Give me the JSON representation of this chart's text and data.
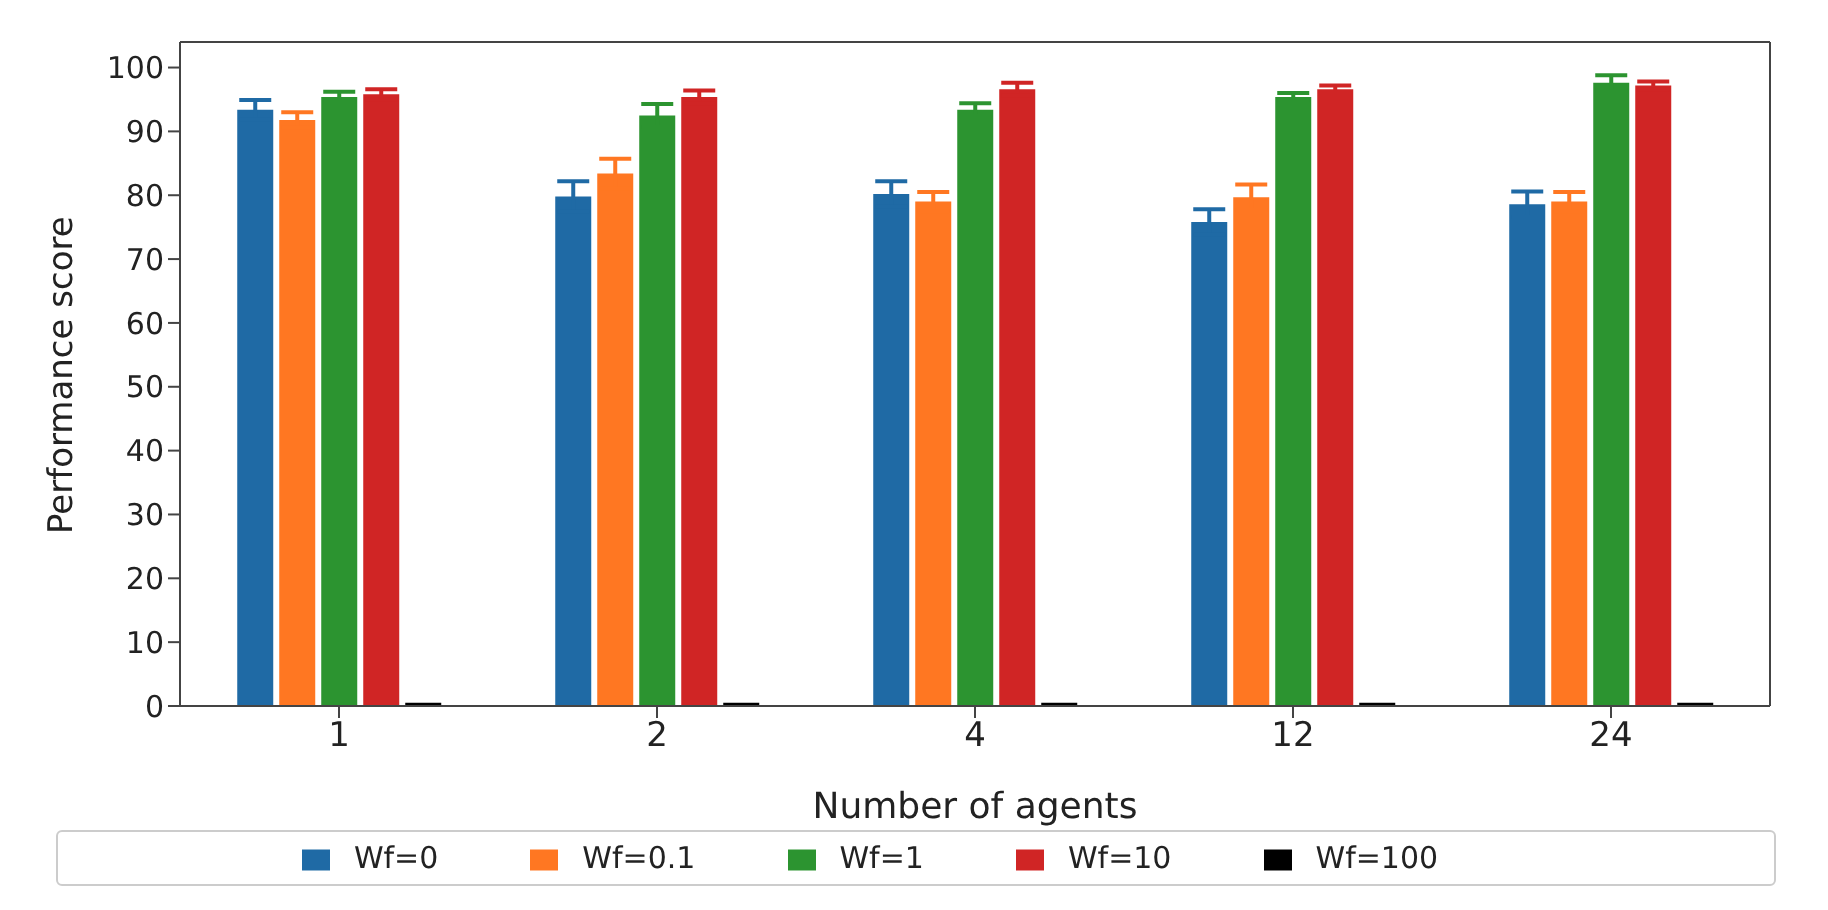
{
  "chart_data": {
    "type": "bar",
    "xlabel": "Number of agents",
    "ylabel": "Performance score",
    "categories": [
      "1",
      "2",
      "4",
      "12",
      "24"
    ],
    "ylim": [
      0,
      104
    ],
    "yticks": [
      0,
      10,
      20,
      30,
      40,
      50,
      60,
      70,
      80,
      90,
      100
    ],
    "grid": false,
    "legend": "bottom",
    "series": [
      {
        "name": "Wf=0",
        "color": "#1f6aa5",
        "values": [
          93.4,
          79.8,
          80.2,
          75.8,
          78.6
        ],
        "errors": [
          1.5,
          2.4,
          2,
          2,
          2
        ]
      },
      {
        "name": "Wf=0.1",
        "color": "#ff7722",
        "values": [
          91.8,
          83.4,
          79,
          79.7,
          79
        ],
        "errors": [
          1.2,
          2.3,
          1.5,
          2,
          1.5
        ]
      },
      {
        "name": "Wf=1",
        "color": "#2c9430",
        "values": [
          95.4,
          92.5,
          93.4,
          95.4,
          97.6
        ],
        "errors": [
          0.8,
          1.8,
          1,
          0.6,
          1.2
        ]
      },
      {
        "name": "Wf=10",
        "color": "#d02525",
        "values": [
          95.8,
          95.4,
          96.6,
          96.6,
          97.2
        ],
        "errors": [
          0.8,
          1,
          1,
          0.6,
          0.6
        ]
      },
      {
        "name": "Wf=100",
        "color": "#000000",
        "values": [
          0.5,
          0.5,
          0.5,
          0.5,
          0.5
        ]
      }
    ]
  }
}
